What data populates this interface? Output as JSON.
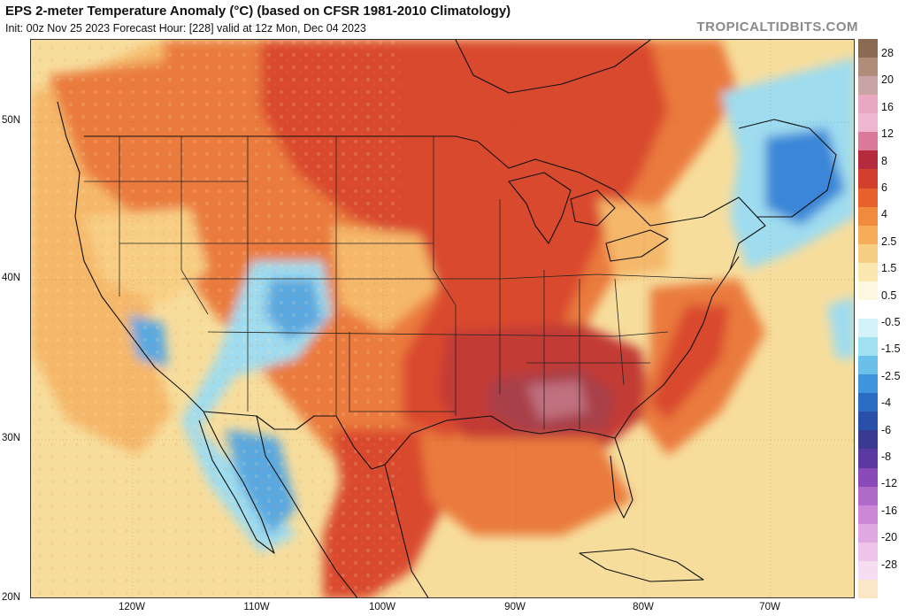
{
  "header": {
    "title": "EPS 2-meter Temperature Anomaly (°C) (based on CFSR 1981-2010 Climatology)",
    "subtitle": "Init: 00z Nov 25 2023   Forecast Hour: [228]   valid at 12z Mon, Dec 04 2023",
    "brand": "TROPICALTIDBITS.COM"
  },
  "axes": {
    "lat_labels": [
      "50N",
      "40N",
      "30N",
      "20N"
    ],
    "lon_labels": [
      "120W",
      "110W",
      "100W",
      "90W",
      "80W",
      "70W"
    ]
  },
  "colorbar": {
    "labels": [
      "28",
      "20",
      "16",
      "12",
      "8",
      "6",
      "4",
      "2.5",
      "1.5",
      "0.5",
      "-0.5",
      "-1.5",
      "-2.5",
      "-4",
      "-6",
      "-8",
      "-12",
      "-16",
      "-20",
      "-28"
    ],
    "colors": [
      "#8a6a52",
      "#b08c7a",
      "#c9a4a4",
      "#e7a8c0",
      "#efb6cf",
      "#d97a9a",
      "#b52a3c",
      "#d2402d",
      "#e8622e",
      "#f08a3c",
      "#f5ad5a",
      "#f8ce84",
      "#fbe7b0",
      "#fdf7df",
      "#ffffff",
      "#d4f2f8",
      "#9fe1f0",
      "#6ac0e8",
      "#3f95dc",
      "#2a6cc4",
      "#2850a8",
      "#3a3a90",
      "#5a3aa0",
      "#8a4ab8",
      "#b06ac8",
      "#cc88d6",
      "#e0a8e0",
      "#efc4ea",
      "#f7ddf2",
      "#fbe6c6"
    ]
  },
  "map_colors": {
    "ocean_neutral": "#f7dd9c",
    "warm_light": "#f5b86a",
    "warm_mid": "#ea7a3c",
    "warm_strong": "#d94a2e",
    "warm_deep": "#c23a34",
    "warm_max": "#a8404a",
    "warm_peak": "#c0707e",
    "cool_light": "#9fdcef",
    "cool_mid": "#5aa8e0",
    "cool_deep": "#2f6ec8",
    "cold_ne": "#3a86d8"
  }
}
